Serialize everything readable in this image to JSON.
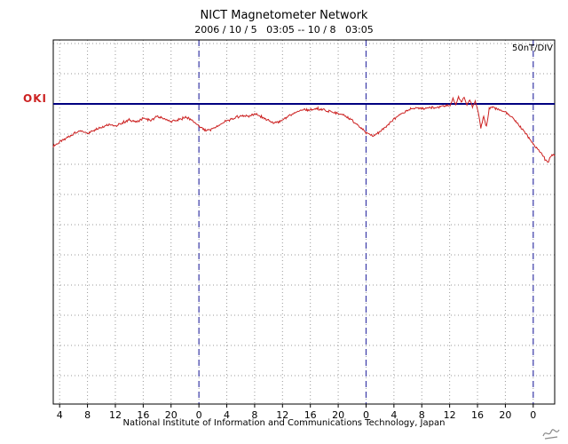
{
  "title": "NICT Magnetometer Network",
  "subtitle": "2006 / 10 / 5   03:05 -- 10 / 8   03:05",
  "station_label": "OKI",
  "scale_label": "50nT/DIV",
  "footer": "National Institute of Information and Communications Technology, Japan",
  "colors": {
    "trace": "#cc2222",
    "station": "#cc2222",
    "baseline": "#000080",
    "day_divider": "#3a3aa8",
    "grid": "#999999",
    "axis": "#000000",
    "artifact": "#8a8a8a"
  },
  "chart_data": {
    "type": "line",
    "title": "NICT Magnetometer Network",
    "subtitle": "2006 / 10 / 5 03:05 -- 10 / 8 03:05",
    "station": "OKI",
    "scale_per_div_nT": 50,
    "x_unit": "hours from 2006/10/5 03:05 JST",
    "x_range": [
      0,
      72
    ],
    "x_tick_hours": [
      0.917,
      4.917,
      8.917,
      12.917,
      16.917,
      20.917,
      24.917,
      28.917,
      32.917,
      36.917,
      40.917,
      44.917,
      48.917,
      52.917,
      56.917,
      60.917,
      64.917,
      68.917
    ],
    "x_tick_labels": [
      "4",
      "8",
      "12",
      "16",
      "20",
      "0",
      "4",
      "8",
      "12",
      "16",
      "20",
      "0",
      "4",
      "8",
      "12",
      "16",
      "20",
      "0"
    ],
    "day_boundary_hours": [
      20.917,
      44.917,
      68.917
    ],
    "baseline_nT": 0,
    "grid": true,
    "series": [
      {
        "name": "OKI magnetogram (nT relative to baseline)",
        "points": [
          [
            0,
            -70.6
          ],
          [
            1,
            -63.2
          ],
          [
            2,
            -55.9
          ],
          [
            3,
            -48.5
          ],
          [
            4,
            -45.6
          ],
          [
            5,
            -48.5
          ],
          [
            6,
            -42.6
          ],
          [
            7,
            -38.2
          ],
          [
            8,
            -33.8
          ],
          [
            9,
            -36.8
          ],
          [
            10,
            -30.9
          ],
          [
            11,
            -26.5
          ],
          [
            12,
            -29.4
          ],
          [
            13,
            -23.5
          ],
          [
            14,
            -27.9
          ],
          [
            15,
            -20.6
          ],
          [
            16,
            -25
          ],
          [
            17,
            -29.4
          ],
          [
            18,
            -26.5
          ],
          [
            19,
            -22.1
          ],
          [
            20,
            -27.9
          ],
          [
            21,
            -38.2
          ],
          [
            22,
            -44.1
          ],
          [
            23,
            -41.2
          ],
          [
            24,
            -33.8
          ],
          [
            25,
            -27.9
          ],
          [
            26,
            -23.5
          ],
          [
            27,
            -19.1
          ],
          [
            28,
            -20.6
          ],
          [
            29,
            -16.2
          ],
          [
            30,
            -22.1
          ],
          [
            31,
            -27.9
          ],
          [
            32,
            -32.4
          ],
          [
            33,
            -26.5
          ],
          [
            34,
            -19.1
          ],
          [
            35,
            -13.2
          ],
          [
            36,
            -8.8
          ],
          [
            37,
            -10.3
          ],
          [
            38,
            -7.4
          ],
          [
            39,
            -10.3
          ],
          [
            40,
            -13.2
          ],
          [
            41,
            -16.2
          ],
          [
            42,
            -20.6
          ],
          [
            43,
            -27.9
          ],
          [
            44,
            -38.2
          ],
          [
            45,
            -48.5
          ],
          [
            46,
            -52.9
          ],
          [
            47,
            -45.6
          ],
          [
            48,
            -35.3
          ],
          [
            49,
            -25
          ],
          [
            50,
            -16.2
          ],
          [
            51,
            -10.3
          ],
          [
            52,
            -5.9
          ],
          [
            53,
            -8.8
          ],
          [
            54,
            -4.4
          ],
          [
            55,
            -7.4
          ],
          [
            56,
            -2.9
          ],
          [
            57,
            -2
          ],
          [
            57.4,
            8.8
          ],
          [
            57.8,
            -1.5
          ],
          [
            58.2,
            11.8
          ],
          [
            58.6,
            2.9
          ],
          [
            59,
            10.3
          ],
          [
            59.4,
            -2.9
          ],
          [
            59.8,
            7.4
          ],
          [
            60.2,
            -5.9
          ],
          [
            60.6,
            4.4
          ],
          [
            61,
            -13.2
          ],
          [
            61.4,
            -39.7
          ],
          [
            61.8,
            -20.6
          ],
          [
            62.2,
            -36.8
          ],
          [
            62.6,
            -8.8
          ],
          [
            63,
            -5.9
          ],
          [
            64,
            -8.8
          ],
          [
            65,
            -14.7
          ],
          [
            66,
            -23.5
          ],
          [
            67,
            -36.8
          ],
          [
            68,
            -51.5
          ],
          [
            69,
            -67.6
          ],
          [
            70,
            -80.9
          ],
          [
            70.5,
            -89.7
          ],
          [
            71,
            -97.1
          ],
          [
            71.4,
            -88.2
          ],
          [
            71.7,
            -83.8
          ],
          [
            72,
            -86.8
          ]
        ]
      }
    ]
  }
}
